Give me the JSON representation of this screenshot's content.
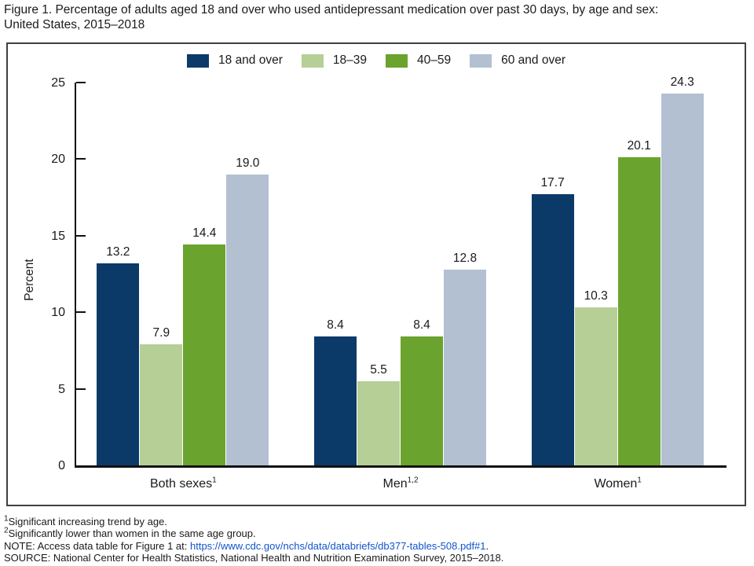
{
  "title": {
    "lines": [
      "Figure 1. Percentage of adults aged 18 and over who used antidepressant medication over past 30 days, by age and sex:",
      "United States, 2015–2018"
    ]
  },
  "colors": {
    "background": "#ffffff",
    "box_border": "#404040",
    "axis": "#111111",
    "text": "#1a1a1a",
    "link": "#1155cc"
  },
  "chart_data": {
    "type": "bar",
    "title": "Percentage of adults aged 18 and over who used antidepressant medication over past 30 days, by age and sex: United States, 2015–2018",
    "xlabel": "",
    "ylabel": "Percent",
    "ylim": [
      0,
      25
    ],
    "yticks": [
      0,
      5,
      10,
      15,
      20,
      25
    ],
    "grid": false,
    "legend_position": "top-center",
    "value_labels": true,
    "categories": [
      {
        "label": "Both sexes",
        "sup": "1"
      },
      {
        "label": "Men",
        "sup": "1,2"
      },
      {
        "label": "Women",
        "sup": "1"
      }
    ],
    "series": [
      {
        "name": "18 and over",
        "color": "#0b3a69",
        "values": [
          13.2,
          8.4,
          17.7
        ]
      },
      {
        "name": "18–39",
        "color": "#b5cf97",
        "values": [
          7.9,
          5.5,
          10.3
        ]
      },
      {
        "name": "40–59",
        "color": "#6aa32d",
        "values": [
          14.4,
          8.4,
          20.1
        ]
      },
      {
        "name": "60 and over",
        "color": "#b3c0d2",
        "values": [
          19.0,
          12.8,
          24.3
        ]
      }
    ]
  },
  "footnotes": [
    {
      "sup": "1",
      "text": "Significant increasing trend by age."
    },
    {
      "sup": "2",
      "text": "Significantly lower than women in the same age group."
    },
    {
      "prefix": "NOTE: Access data table for Figure 1 at: ",
      "link": "https://www.cdc.gov/nchs/data/databriefs/db377-tables-508.pdf#1",
      "suffix": "."
    },
    {
      "text": "SOURCE: National Center for Health Statistics, National Health and Nutrition Examination Survey, 2015–2018."
    }
  ]
}
